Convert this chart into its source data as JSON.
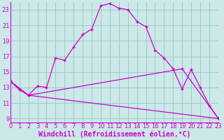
{
  "xlabel": "Windchill (Refroidissement éolien,°C)",
  "bg_color": "#cce8e8",
  "grid_color": "#99cccc",
  "line_color": "#cc00cc",
  "xmin": 0,
  "xmax": 23,
  "ymin": 8.5,
  "ymax": 24.0,
  "yticks": [
    9,
    11,
    13,
    15,
    17,
    19,
    21,
    23
  ],
  "xticks": [
    0,
    1,
    2,
    3,
    4,
    5,
    6,
    7,
    8,
    9,
    10,
    11,
    12,
    13,
    14,
    15,
    16,
    17,
    18,
    19,
    20,
    21,
    22,
    23
  ],
  "curve1_x": [
    0,
    1,
    2,
    3,
    4,
    5,
    6,
    7,
    8,
    9,
    10,
    11,
    12,
    13,
    14,
    15,
    16,
    17,
    18,
    19,
    20,
    21,
    22,
    23
  ],
  "curve1_y": [
    13.8,
    12.7,
    12.0,
    13.2,
    13.0,
    16.8,
    16.5,
    18.2,
    19.8,
    20.5,
    23.5,
    23.8,
    23.2,
    23.0,
    21.5,
    20.8,
    17.8,
    16.8,
    15.4,
    12.8,
    15.3,
    13.0,
    10.7,
    9.0
  ],
  "curve2_x": [
    0,
    2,
    23
  ],
  "curve2_y": [
    13.8,
    12.0,
    9.0
  ],
  "curve3_x": [
    0,
    2,
    19,
    23
  ],
  "curve3_y": [
    13.8,
    12.0,
    15.4,
    9.0
  ],
  "xlabel_fontsize": 7.0,
  "tick_fontsize": 6.0
}
